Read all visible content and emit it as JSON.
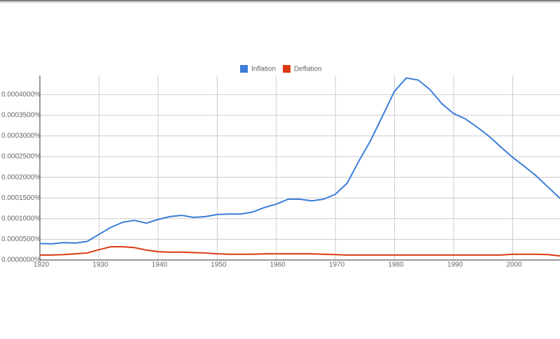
{
  "chart_data": {
    "type": "line",
    "x": [
      1920,
      1922,
      1924,
      1926,
      1928,
      1930,
      1932,
      1934,
      1936,
      1938,
      1940,
      1942,
      1944,
      1946,
      1948,
      1950,
      1952,
      1954,
      1956,
      1958,
      1960,
      1962,
      1964,
      1966,
      1968,
      1970,
      1972,
      1974,
      1976,
      1978,
      1980,
      1982,
      1984,
      1986,
      1988,
      1990,
      1992,
      1994,
      1996,
      1998,
      2000,
      2002,
      2004,
      2006,
      2008
    ],
    "series": [
      {
        "name": "Inflation",
        "color": "#3b7dd8",
        "values": [
          4e-05,
          3.9e-05,
          4.2e-05,
          4.1e-05,
          4.5e-05,
          6.2e-05,
          7.9e-05,
          9.1e-05,
          9.6e-05,
          8.9e-05,
          9.8e-05,
          0.000105,
          0.000108,
          0.000103,
          0.000105,
          0.00011,
          0.000111,
          0.000111,
          0.000116,
          0.000127,
          0.000135,
          0.000147,
          0.000147,
          0.000143,
          0.000147,
          0.000159,
          0.000186,
          0.00024,
          0.00029,
          0.000349,
          0.000408,
          0.00044,
          0.000435,
          0.000412,
          0.000378,
          0.000354,
          0.000341,
          0.000321,
          0.000299,
          0.000273,
          0.000248,
          0.000226,
          0.000203,
          0.000176,
          0.000149
        ]
      },
      {
        "name": "Deflation",
        "color": "#dc3912",
        "values": [
          1.2e-05,
          1.2e-05,
          1.3e-05,
          1.5e-05,
          1.7e-05,
          2.5e-05,
          3.2e-05,
          3.2e-05,
          3e-05,
          2.4e-05,
          2e-05,
          1.9e-05,
          1.9e-05,
          1.8e-05,
          1.7e-05,
          1.5e-05,
          1.4e-05,
          1.4e-05,
          1.4e-05,
          1.5e-05,
          1.5e-05,
          1.5e-05,
          1.5e-05,
          1.5e-05,
          1.4e-05,
          1.3e-05,
          1.2e-05,
          1.2e-05,
          1.2e-05,
          1.2e-05,
          1.2e-05,
          1.2e-05,
          1.2e-05,
          1.2e-05,
          1.2e-05,
          1.2e-05,
          1.2e-05,
          1.2e-05,
          1.2e-05,
          1.2e-05,
          1.4e-05,
          1.4e-05,
          1.4e-05,
          1.3e-05,
          1e-05
        ]
      }
    ],
    "xlim": [
      1920,
      2008
    ],
    "xticks": [
      1920,
      1930,
      1940,
      1950,
      1960,
      1970,
      1980,
      1990,
      2000
    ],
    "ylim": [
      0,
      0.000446
    ],
    "yticks": [
      {
        "value": 0,
        "label": "0.0000000%"
      },
      {
        "value": 5e-05,
        "label": "0.0000500%"
      },
      {
        "value": 0.0001,
        "label": "0.0001000%"
      },
      {
        "value": 0.00015,
        "label": "0.0001500%"
      },
      {
        "value": 0.0002,
        "label": "0.0002000%"
      },
      {
        "value": 0.00025,
        "label": "0.0002500%"
      },
      {
        "value": 0.0003,
        "label": "0.0003000%"
      },
      {
        "value": 0.00035,
        "label": "0.0003500%"
      },
      {
        "value": 0.0004,
        "label": "0.0004000%"
      }
    ],
    "grid": true,
    "legend": "top"
  }
}
